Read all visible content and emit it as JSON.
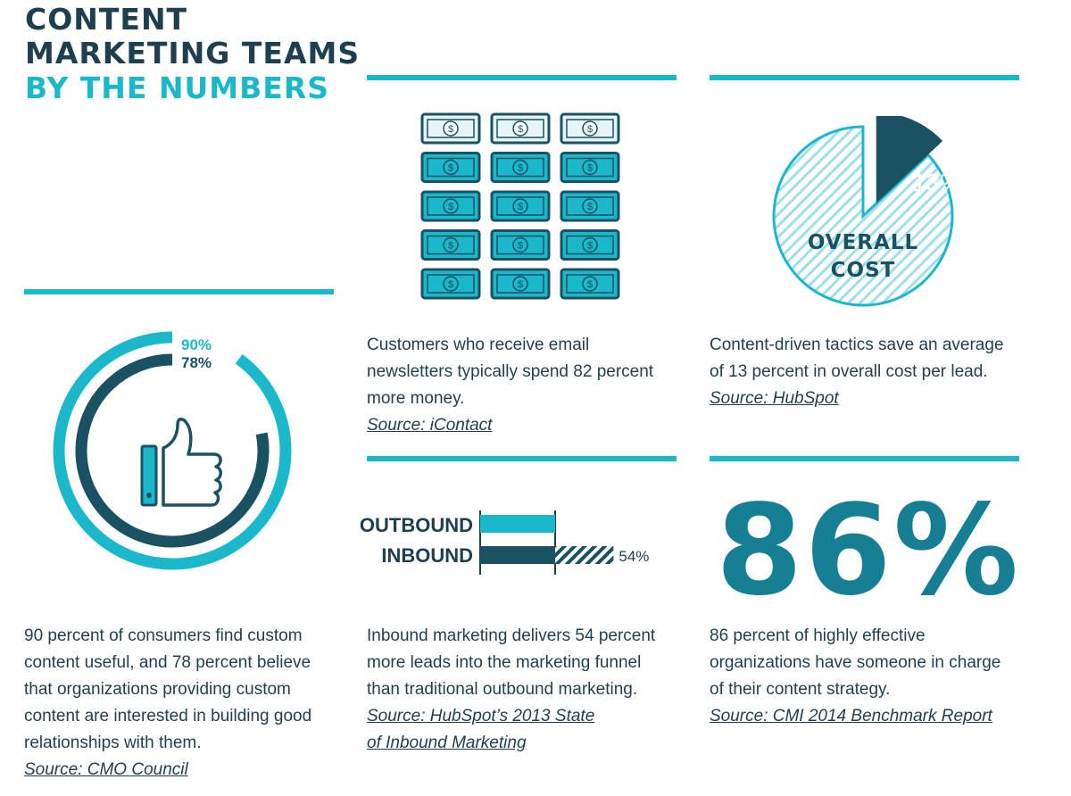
{
  "colors": {
    "accent": "#1bb8cc",
    "dark": "#1a5163",
    "navy": "#1e3f4f",
    "stat": "#177f94",
    "bill_light": "#e6f6f8"
  },
  "header": {
    "line1": "CONTENT",
    "line2": "MARKETING TEAMS",
    "line3": "BY THE NUMBERS"
  },
  "panels": {
    "consumers": {
      "text": "90 percent of consumers find custom content useful, and 78 percent believe that organizations providing custom content are interested in building good relationships with them.",
      "source": "Source: CMO Council"
    },
    "newsletters": {
      "text": "Customers who receive email newsletters typically spend 82 percent more money.",
      "source": "Source: iContact"
    },
    "cost": {
      "text": "Content-driven tactics save an average of 13 percent in overall cost per lead.",
      "source": "Source: HubSpot"
    },
    "inbound": {
      "text": "Inbound marketing delivers 54 percent more leads into the marketing funnel than traditional outbound marketing.",
      "source_line1": "Source: HubSpot’s 2013 State",
      "source_line2": "of Inbound Marketing"
    },
    "strategy": {
      "text": "86 percent of highly effective organizations have someone in charge of their content strategy.",
      "source": "Source: CMI 2014 Benchmark Report",
      "big_value": "86%"
    }
  },
  "icons": {
    "thumbs": "thumbs-up-icon",
    "money": "dollar-bill-icon"
  },
  "chart_data": [
    {
      "type": "donut",
      "series": [
        {
          "name": "",
          "values": [
            90
          ],
          "label": "90%",
          "color": "#1bb8cc"
        },
        {
          "name": "",
          "values": [
            78
          ],
          "label": "78%",
          "color": "#1a5163"
        }
      ],
      "max": 100
    },
    {
      "type": "pictogram",
      "rows": 5,
      "cols": 3,
      "highlighted_rows": 4
    },
    {
      "type": "pie",
      "slices": [
        {
          "label": "13%",
          "value": 13,
          "color": "#1a5163",
          "exploded": true
        },
        {
          "label": "",
          "value": 87,
          "pattern": "hatch"
        }
      ],
      "center_label_line1": "OVERALL",
      "center_label_line2": "COST"
    },
    {
      "type": "bar",
      "orientation": "horizontal",
      "categories": [
        "OUTBOUND",
        "INBOUND"
      ],
      "values": [
        100,
        154
      ],
      "extra_label": "54%"
    }
  ]
}
